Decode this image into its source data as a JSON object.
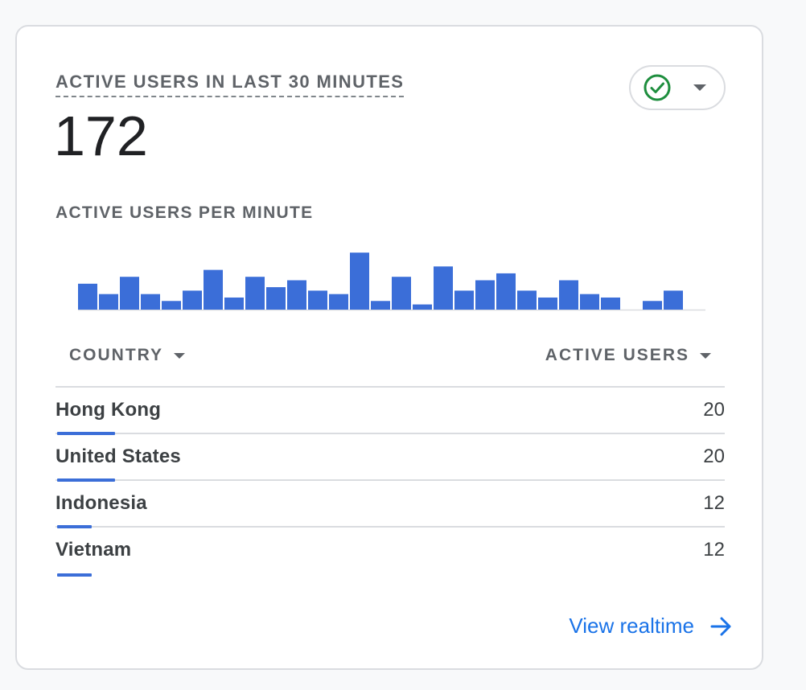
{
  "card": {
    "title": "ACTIVE USERS IN LAST 30 MINUTES",
    "total": "172",
    "status_icon": "check-circle-icon",
    "status_color": "#1e8e3e"
  },
  "chart_data": {
    "type": "bar",
    "title": "ACTIVE USERS PER MINUTE",
    "color": "#3b6ed8",
    "values": [
      7.5,
      4.5,
      9.5,
      4.5,
      2.5,
      5.5,
      11.5,
      3.5,
      9.5,
      6.5,
      8.5,
      5.5,
      4.5,
      16.5,
      2.5,
      9.5,
      1.5,
      12.5,
      5.5,
      8.5,
      10.5,
      5.5,
      3.5,
      8.5,
      4.5,
      3.5,
      0,
      2.5,
      5.5,
      0
    ],
    "ylim": [
      0,
      17
    ]
  },
  "table": {
    "headers": {
      "country": "COUNTRY",
      "users": "ACTIVE USERS"
    },
    "max_value": 20,
    "rows": [
      {
        "country": "Hong Kong",
        "users": "20",
        "share": 1.0
      },
      {
        "country": "United States",
        "users": "20",
        "share": 1.0
      },
      {
        "country": "Indonesia",
        "users": "12",
        "share": 0.6
      },
      {
        "country": "Vietnam",
        "users": "12",
        "share": 0.6
      }
    ]
  },
  "footer": {
    "link_label": "View realtime",
    "link_icon": "arrow-right-icon",
    "accent": "#1a73e8"
  }
}
